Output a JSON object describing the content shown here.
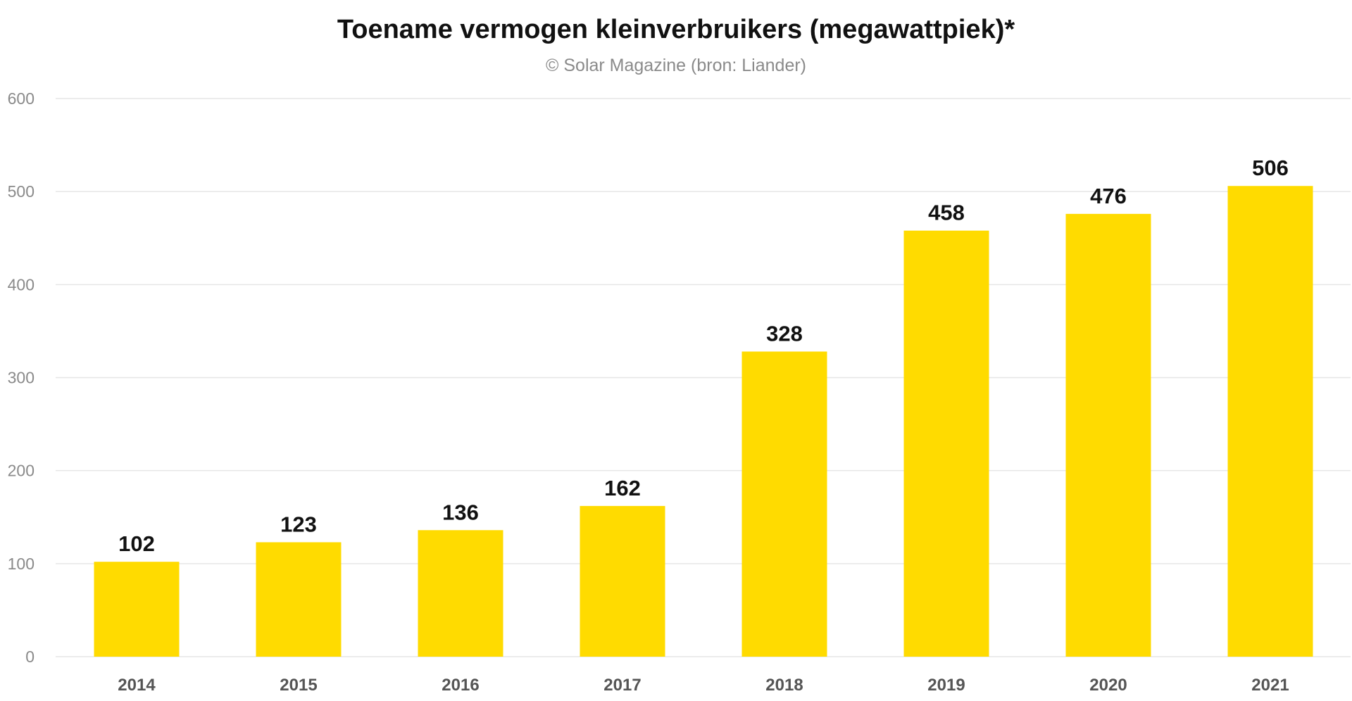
{
  "chart_data": {
    "type": "bar",
    "title": "Toename vermogen kleinverbruikers (megawattpiek)*",
    "subtitle": "© Solar Magazine (bron: Liander)",
    "xlabel": "",
    "ylabel": "",
    "categories": [
      "2014",
      "2015",
      "2016",
      "2017",
      "2018",
      "2019",
      "2020",
      "2021"
    ],
    "values": [
      102,
      123,
      136,
      162,
      328,
      458,
      476,
      506
    ],
    "data_labels": [
      "102",
      "123",
      "136",
      "162",
      "328",
      "458",
      "476",
      "506"
    ],
    "ylim": [
      0,
      600
    ],
    "yticks": [
      0,
      100,
      200,
      300,
      400,
      500,
      600
    ],
    "grid": true,
    "legend": "none",
    "bar_color": "#FFDB00",
    "grid_color": "#E6E6E6"
  }
}
